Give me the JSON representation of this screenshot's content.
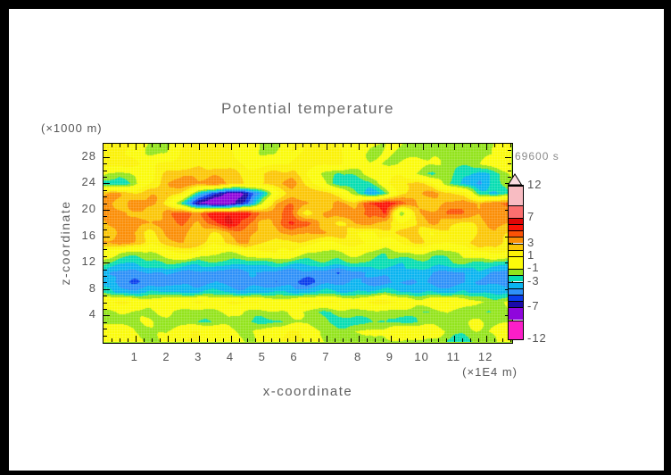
{
  "page": {
    "title": "Potential temperature",
    "time_label": "69600 s",
    "y_unit": "(×1000 m)",
    "x_unit": "(×1E4 m)",
    "x_axis_title": "x-coordinate",
    "y_axis_title": "z-coordinate"
  },
  "chart_data": {
    "type": "heatmap",
    "title": "Potential temperature",
    "xlabel": "x-coordinate",
    "ylabel": "z-coordinate",
    "x_unit": "(×1E4 m)",
    "y_unit": "(×1000 m)",
    "time_stamp": "69600 s",
    "xlim": [
      0,
      12.78
    ],
    "ylim": [
      0,
      30
    ],
    "x_major_ticks": [
      1,
      2,
      3,
      4,
      5,
      6,
      7,
      8,
      9,
      10,
      11,
      12
    ],
    "x_minor_step": 0.25,
    "y_major_ticks": [
      4,
      8,
      12,
      16,
      20,
      24,
      28
    ],
    "y_minor_step": 1,
    "grid_on": true,
    "legend_position": "right-colorbar",
    "levels": [
      -12,
      -9,
      -7,
      -6,
      -5,
      -4,
      -3,
      -2,
      -1,
      1,
      2,
      3,
      4,
      5,
      6,
      7,
      9,
      12
    ],
    "colors": [
      "#fb1ec8",
      "#8f06dc",
      "#1a0aa8",
      "#0a3cec",
      "#2e90f8",
      "#0ab4f0",
      "#06ddb2",
      "#93e41c",
      "#fbfb0a",
      "#fbf206",
      "#fbc606",
      "#fb8e06",
      "#fb5206",
      "#fb1206",
      "#e00606",
      "#fb6f6f",
      "#f8bcc2"
    ],
    "over_color": "#fbdce2",
    "colorbar_ticks": [
      12,
      7,
      3,
      1,
      -1,
      -3,
      -7,
      -12
    ],
    "rows_z_top_to_bottom": [
      30,
      28.5,
      27,
      25.5,
      24,
      22.5,
      21,
      19.5,
      18,
      16.5,
      15,
      13.5,
      12,
      10.5,
      9,
      7.5,
      6,
      4.5,
      3,
      1.5,
      0
    ],
    "values": [
      [
        1.5,
        1.5,
        0.8,
        -1.2,
        -1.0,
        1.2,
        1.5,
        1.3,
        0.6,
        -0.8,
        -1.5,
        -1.2,
        0.8,
        1.4,
        1.5,
        1.0,
        -0.6,
        -1.3,
        -1.0,
        -1.4,
        -1.6,
        -1.4,
        -1.5,
        -1.3,
        -1.5,
        -0.8,
        1.0
      ],
      [
        1.5,
        1.3,
        0.4,
        -1.4,
        -0.8,
        1.3,
        1.6,
        1.5,
        1.2,
        0.4,
        -1.2,
        -0.8,
        1.0,
        1.5,
        1.6,
        1.2,
        -0.3,
        -1.4,
        -1.2,
        -1.5,
        -1.4,
        -1.2,
        -1.6,
        -1.5,
        -1.4,
        -1.0,
        0.6
      ],
      [
        1.6,
        1.5,
        1.2,
        0.3,
        1.2,
        1.6,
        1.8,
        1.6,
        1.4,
        1.0,
        0.2,
        0.6,
        1.3,
        1.6,
        1.6,
        1.4,
        0.4,
        -1.0,
        -1.4,
        -1.0,
        -0.3,
        -1.2,
        -1.6,
        -1.4,
        -1.0,
        0.4,
        1.4
      ],
      [
        -0.5,
        -1.8,
        -1.0,
        0.8,
        2.2,
        3.0,
        2.6,
        3.2,
        2.4,
        1.2,
        1.4,
        2.4,
        2.0,
        0.8,
        -1.0,
        -2.2,
        -1.6,
        -0.4,
        1.0,
        0.6,
        -1.2,
        -2.0,
        -1.4,
        -2.6,
        -3.4,
        -2.2,
        -1.0
      ],
      [
        -2.2,
        -2.8,
        -1.2,
        1.4,
        3.0,
        3.6,
        3.2,
        3.8,
        2.8,
        1.6,
        2.0,
        2.8,
        3.4,
        1.8,
        -0.6,
        -2.6,
        -3.2,
        -2.2,
        0.8,
        2.2,
        2.6,
        1.4,
        -1.8,
        -3.6,
        -4.2,
        -2.6,
        -1.4
      ],
      [
        2.6,
        3.2,
        2.4,
        2.8,
        3.4,
        1.4,
        -2.6,
        -6.0,
        -7.8,
        -6.8,
        -4.0,
        0.8,
        2.6,
        3.2,
        2.2,
        1.2,
        -2.0,
        -4.2,
        -2.4,
        1.8,
        3.2,
        3.6,
        2.6,
        1.2,
        -2.4,
        -3.8,
        -2.0
      ],
      [
        3.2,
        2.4,
        3.6,
        3.8,
        1.4,
        -2.4,
        -6.5,
        -8.6,
        -8.2,
        -5.5,
        -1.5,
        2.8,
        3.8,
        3.0,
        2.2,
        3.0,
        2.4,
        5.2,
        5.8,
        4.6,
        3.0,
        2.2,
        3.2,
        3.8,
        3.4,
        4.0,
        4.4
      ],
      [
        3.4,
        3.8,
        3.0,
        2.2,
        3.6,
        4.4,
        3.6,
        5.4,
        6.2,
        5.6,
        4.4,
        3.6,
        4.2,
        1.2,
        2.6,
        3.8,
        3.2,
        4.6,
        5.2,
        -1.5,
        2.8,
        3.4,
        4.2,
        3.6,
        3.0,
        3.6,
        4.2
      ],
      [
        2.4,
        3.2,
        3.8,
        2.8,
        3.4,
        4.2,
        3.0,
        4.4,
        6.4,
        5.0,
        2.6,
        3.4,
        5.6,
        4.6,
        2.4,
        1.4,
        2.8,
        3.6,
        2.0,
        1.0,
        2.2,
        3.2,
        2.4,
        1.6,
        2.6,
        3.4,
        2.8
      ],
      [
        2.2,
        3.4,
        2.6,
        1.4,
        2.8,
        3.6,
        2.8,
        2.0,
        3.2,
        4.0,
        3.0,
        2.2,
        3.4,
        2.6,
        3.4,
        2.6,
        1.4,
        0.6,
        1.6,
        2.6,
        1.8,
        0.8,
        1.6,
        1.2,
        2.4,
        3.2,
        2.0
      ],
      [
        3.4,
        3.8,
        2.6,
        1.2,
        2.2,
        3.2,
        2.4,
        1.4,
        2.6,
        3.2,
        2.2,
        1.0,
        1.8,
        1.4,
        0.6,
        1.4,
        2.2,
        1.0,
        0.4,
        1.2,
        2.0,
        1.4,
        0.6,
        1.8,
        2.6,
        2.8,
        1.8
      ],
      [
        0.6,
        -0.8,
        -1.4,
        -1.0,
        0.4,
        1.2,
        0.4,
        -1.0,
        -1.4,
        -0.6,
        0.8,
        1.2,
        0.6,
        -0.8,
        -1.4,
        -1.2,
        -0.6,
        -1.2,
        -1.6,
        -1.0,
        -0.4,
        -1.2,
        -1.4,
        -0.8,
        0.6,
        1.2,
        0.4
      ],
      [
        -1.6,
        -2.4,
        -2.8,
        -2.2,
        -1.8,
        -2.4,
        -2.8,
        -2.4,
        -2.0,
        -2.6,
        -2.2,
        -1.8,
        -2.4,
        -2.8,
        -2.4,
        -2.6,
        -2.2,
        -1.8,
        -2.4,
        -2.6,
        -2.2,
        -2.6,
        -2.4,
        -2.0,
        -2.4,
        -2.6,
        -2.2
      ],
      [
        -3.4,
        -4.2,
        -4.6,
        -4.2,
        -3.8,
        -4.4,
        -4.6,
        -4.2,
        -4.6,
        -4.4,
        -4.0,
        -4.4,
        -4.6,
        -4.2,
        -4.4,
        -4.6,
        -4.2,
        -3.8,
        -3.4,
        -3.0,
        -3.6,
        -4.2,
        -4.4,
        -4.0,
        -3.6,
        -4.2,
        -4.4
      ],
      [
        -3.6,
        -4.4,
        -4.8,
        -4.6,
        -4.2,
        -4.6,
        -4.8,
        -4.4,
        -4.6,
        -4.8,
        -4.4,
        -4.6,
        -4.4,
        -5.4,
        -4.6,
        -4.4,
        -4.2,
        -4.6,
        -4.4,
        -4.0,
        -3.6,
        -4.2,
        -4.6,
        -4.4,
        -4.2,
        -4.6,
        -4.8
      ],
      [
        -2.6,
        -3.2,
        -3.6,
        -3.0,
        -2.8,
        -3.4,
        -3.2,
        -2.8,
        -3.0,
        -3.4,
        -3.0,
        -2.6,
        -3.0,
        -3.2,
        -2.8,
        -3.0,
        -3.2,
        -2.8,
        -2.4,
        -2.8,
        -3.0,
        -3.2,
        -3.4,
        -3.0,
        -3.2,
        -3.6,
        -3.4
      ],
      [
        0.6,
        1.3,
        0.5,
        -0.7,
        0.5,
        1.2,
        1.4,
        0.6,
        1.1,
        1.5,
        0.7,
        -0.5,
        0.7,
        1.3,
        1.5,
        1.1,
        0.3,
        1.1,
        1.5,
        0.7,
        -0.7,
        0.3,
        1.1,
        0.5,
        -0.9,
        -1.3,
        -0.7
      ],
      [
        -1.3,
        -0.9,
        -1.5,
        -1.1,
        -0.7,
        -1.3,
        -1.7,
        -1.1,
        -0.5,
        -1.3,
        -1.7,
        -1.3,
        -0.9,
        -1.5,
        -1.9,
        -1.3,
        -0.9,
        -1.5,
        -1.1,
        -1.7,
        -2.3,
        -1.7,
        -1.1,
        -1.5,
        -1.9,
        -1.5,
        -1.1
      ],
      [
        -1.2,
        -1.6,
        -1.2,
        -0.8,
        -1.4,
        -1.8,
        -2.4,
        -2.0,
        -1.4,
        -2.2,
        -2.6,
        -2.0,
        -1.4,
        -1.0,
        -1.6,
        -2.4,
        -2.8,
        -2.2,
        -1.6,
        -2.4,
        -2.0,
        -1.4,
        -1.8,
        -1.4,
        -1.0,
        -1.6,
        -1.2
      ],
      [
        1.0,
        0.4,
        -0.8,
        -1.4,
        -0.8,
        0.6,
        1.2,
        0.4,
        -1.0,
        -1.6,
        -1.0,
        0.6,
        1.3,
        0.5,
        -0.9,
        -1.5,
        -0.9,
        -1.3,
        -0.7,
        0.5,
        1.1,
        0.3,
        -1.1,
        -1.5,
        -0.9,
        -0.5,
        0.7
      ],
      [
        1.2,
        0.6,
        -0.6,
        -1.2,
        -0.6,
        0.8,
        1.4,
        0.6,
        -0.8,
        -1.4,
        -0.8,
        0.8,
        1.4,
        0.6,
        -0.8,
        -1.4,
        -1.0,
        -1.4,
        -0.8,
        -1.2,
        -1.4,
        -1.0,
        -2.2,
        -2.6,
        -1.8,
        -1.2,
        0.6
      ]
    ]
  }
}
